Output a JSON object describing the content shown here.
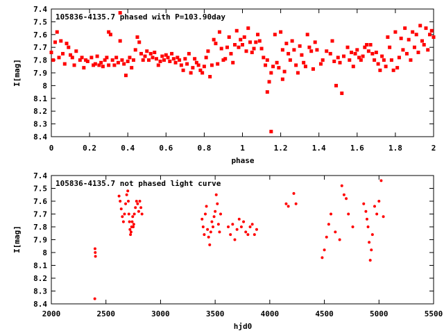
{
  "chart_data": [
    {
      "type": "scatter",
      "title": "105836-4135.7 phased with P=103.90day",
      "xlabel": "phase",
      "ylabel": "I[mag]",
      "xlim": [
        0,
        2
      ],
      "ylim": [
        7.4,
        8.4
      ],
      "y_inverted": true,
      "grid": false,
      "marker_color": "#ff0000",
      "x_ticks": [
        "0",
        "0.2",
        "0.4",
        "0.6",
        "0.8",
        "1",
        "1.2",
        "1.4",
        "1.6",
        "1.8",
        "2"
      ],
      "y_ticks": [
        "7.4",
        "7.5",
        "7.6",
        "7.7",
        "7.8",
        "7.9",
        "8",
        "8.1",
        "8.2",
        "8.3",
        "8.4"
      ],
      "points": [
        [
          0.0,
          7.74
        ],
        [
          0.01,
          7.8
        ],
        [
          0.02,
          7.66
        ],
        [
          0.03,
          7.58
        ],
        [
          0.04,
          7.78
        ],
        [
          0.05,
          7.65
        ],
        [
          0.06,
          7.75
        ],
        [
          0.07,
          7.83
        ],
        [
          0.08,
          7.67
        ],
        [
          0.09,
          7.7
        ],
        [
          0.1,
          7.76
        ],
        [
          0.11,
          7.78
        ],
        [
          0.12,
          7.84
        ],
        [
          0.13,
          7.73
        ],
        [
          0.15,
          7.8
        ],
        [
          0.16,
          7.78
        ],
        [
          0.17,
          7.86
        ],
        [
          0.18,
          7.8
        ],
        [
          0.19,
          7.81
        ],
        [
          0.21,
          7.78
        ],
        [
          0.22,
          7.84
        ],
        [
          0.23,
          7.83
        ],
        [
          0.24,
          7.77
        ],
        [
          0.25,
          7.84
        ],
        [
          0.26,
          7.82
        ],
        [
          0.27,
          7.85
        ],
        [
          0.28,
          7.8
        ],
        [
          0.29,
          7.78
        ],
        [
          0.3,
          7.84
        ],
        [
          0.3,
          7.58
        ],
        [
          0.31,
          7.6
        ],
        [
          0.32,
          7.8
        ],
        [
          0.33,
          7.84
        ],
        [
          0.34,
          7.78
        ],
        [
          0.35,
          7.82
        ],
        [
          0.36,
          7.65
        ],
        [
          0.36,
          7.43
        ],
        [
          0.37,
          7.8
        ],
        [
          0.38,
          7.83
        ],
        [
          0.39,
          7.92
        ],
        [
          0.4,
          7.81
        ],
        [
          0.41,
          7.78
        ],
        [
          0.42,
          7.86
        ],
        [
          0.43,
          7.8
        ],
        [
          0.44,
          7.72
        ],
        [
          0.45,
          7.62
        ],
        [
          0.46,
          7.66
        ],
        [
          0.47,
          7.75
        ],
        [
          0.48,
          7.8
        ],
        [
          0.49,
          7.77
        ],
        [
          0.5,
          7.73
        ],
        [
          0.51,
          7.8
        ],
        [
          0.52,
          7.75
        ],
        [
          0.53,
          7.78
        ],
        [
          0.54,
          7.74
        ],
        [
          0.55,
          7.79
        ],
        [
          0.56,
          7.84
        ],
        [
          0.57,
          7.81
        ],
        [
          0.58,
          7.77
        ],
        [
          0.59,
          7.8
        ],
        [
          0.6,
          7.76
        ],
        [
          0.61,
          7.78
        ],
        [
          0.62,
          7.81
        ],
        [
          0.63,
          7.75
        ],
        [
          0.64,
          7.79
        ],
        [
          0.65,
          7.82
        ],
        [
          0.66,
          7.78
        ],
        [
          0.67,
          7.8
        ],
        [
          0.68,
          7.84
        ],
        [
          0.69,
          7.88
        ],
        [
          0.7,
          7.79
        ],
        [
          0.71,
          7.83
        ],
        [
          0.72,
          7.75
        ],
        [
          0.73,
          7.9
        ],
        [
          0.74,
          7.86
        ],
        [
          0.75,
          7.79
        ],
        [
          0.76,
          7.82
        ],
        [
          0.77,
          7.84
        ],
        [
          0.78,
          7.88
        ],
        [
          0.79,
          7.9
        ],
        [
          0.8,
          7.85
        ],
        [
          0.81,
          7.78
        ],
        [
          0.82,
          7.73
        ],
        [
          0.83,
          7.93
        ],
        [
          0.84,
          7.84
        ],
        [
          0.85,
          7.64
        ],
        [
          0.86,
          7.67
        ],
        [
          0.87,
          7.83
        ],
        [
          0.88,
          7.58
        ],
        [
          0.89,
          7.71
        ],
        [
          0.9,
          7.8
        ],
        [
          0.91,
          7.79
        ],
        [
          0.92,
          7.7
        ],
        [
          0.93,
          7.62
        ],
        [
          0.94,
          7.75
        ],
        [
          0.95,
          7.82
        ],
        [
          0.96,
          7.68
        ],
        [
          0.97,
          7.57
        ],
        [
          0.98,
          7.7
        ],
        [
          0.99,
          7.64
        ],
        [
          1.0,
          7.68
        ],
        [
          1.01,
          7.62
        ],
        [
          1.02,
          7.73
        ],
        [
          1.03,
          7.55
        ],
        [
          1.04,
          7.66
        ],
        [
          1.05,
          7.74
        ],
        [
          1.06,
          7.71
        ],
        [
          1.07,
          7.66
        ],
        [
          1.08,
          7.6
        ],
        [
          1.09,
          7.65
        ],
        [
          1.1,
          7.71
        ],
        [
          1.11,
          7.78
        ],
        [
          1.12,
          7.84
        ],
        [
          1.13,
          7.8
        ],
        [
          1.13,
          8.05
        ],
        [
          1.14,
          7.97
        ],
        [
          1.15,
          8.36
        ],
        [
          1.15,
          7.9
        ],
        [
          1.16,
          7.85
        ],
        [
          1.17,
          7.6
        ],
        [
          1.18,
          7.82
        ],
        [
          1.19,
          7.86
        ],
        [
          1.2,
          7.58
        ],
        [
          1.21,
          7.72
        ],
        [
          1.21,
          7.95
        ],
        [
          1.22,
          7.89
        ],
        [
          1.23,
          7.67
        ],
        [
          1.24,
          7.75
        ],
        [
          1.25,
          7.8
        ],
        [
          1.26,
          7.65
        ],
        [
          1.27,
          7.72
        ],
        [
          1.28,
          7.84
        ],
        [
          1.29,
          7.9
        ],
        [
          1.3,
          7.69
        ],
        [
          1.31,
          7.76
        ],
        [
          1.32,
          7.82
        ],
        [
          1.33,
          7.85
        ],
        [
          1.34,
          7.6
        ],
        [
          1.35,
          7.7
        ],
        [
          1.36,
          7.73
        ],
        [
          1.37,
          7.87
        ],
        [
          1.38,
          7.66
        ],
        [
          1.39,
          7.72
        ],
        [
          1.41,
          7.83
        ],
        [
          1.42,
          7.8
        ],
        [
          1.44,
          7.73
        ],
        [
          1.46,
          7.75
        ],
        [
          1.47,
          7.65
        ],
        [
          1.48,
          7.81
        ],
        [
          1.49,
          8.0
        ],
        [
          1.5,
          7.78
        ],
        [
          1.51,
          7.82
        ],
        [
          1.52,
          8.06
        ],
        [
          1.53,
          7.77
        ],
        [
          1.55,
          7.7
        ],
        [
          1.56,
          7.8
        ],
        [
          1.57,
          7.74
        ],
        [
          1.58,
          7.85
        ],
        [
          1.59,
          7.75
        ],
        [
          1.6,
          7.72
        ],
        [
          1.61,
          7.78
        ],
        [
          1.62,
          7.8
        ],
        [
          1.63,
          7.77
        ],
        [
          1.64,
          7.7
        ],
        [
          1.65,
          7.68
        ],
        [
          1.66,
          7.73
        ],
        [
          1.67,
          7.68
        ],
        [
          1.68,
          7.75
        ],
        [
          1.69,
          7.8
        ],
        [
          1.7,
          7.74
        ],
        [
          1.71,
          7.83
        ],
        [
          1.72,
          7.88
        ],
        [
          1.73,
          7.77
        ],
        [
          1.74,
          7.8
        ],
        [
          1.75,
          7.85
        ],
        [
          1.76,
          7.62
        ],
        [
          1.77,
          7.7
        ],
        [
          1.78,
          7.8
        ],
        [
          1.79,
          7.88
        ],
        [
          1.8,
          7.58
        ],
        [
          1.81,
          7.86
        ],
        [
          1.82,
          7.78
        ],
        [
          1.83,
          7.63
        ],
        [
          1.84,
          7.72
        ],
        [
          1.85,
          7.55
        ],
        [
          1.86,
          7.75
        ],
        [
          1.87,
          7.64
        ],
        [
          1.88,
          7.8
        ],
        [
          1.89,
          7.58
        ],
        [
          1.9,
          7.7
        ],
        [
          1.91,
          7.6
        ],
        [
          1.92,
          7.74
        ],
        [
          1.93,
          7.53
        ],
        [
          1.94,
          7.65
        ],
        [
          1.95,
          7.68
        ],
        [
          1.96,
          7.55
        ],
        [
          1.97,
          7.72
        ],
        [
          1.98,
          7.6
        ],
        [
          1.99,
          7.57
        ],
        [
          2.0,
          7.62
        ]
      ]
    },
    {
      "type": "scatter",
      "title": "105836-4135.7 not phased light curve",
      "xlabel": "hjd0",
      "ylabel": "I[mag]",
      "xlim": [
        2000,
        5500
      ],
      "ylim": [
        7.4,
        8.4
      ],
      "y_inverted": true,
      "grid": false,
      "marker_color": "#ff0000",
      "x_ticks": [
        "2000",
        "2500",
        "3000",
        "3500",
        "4000",
        "4500",
        "5000",
        "5500"
      ],
      "y_ticks": [
        "7.4",
        "7.5",
        "7.6",
        "7.7",
        "7.8",
        "7.9",
        "8",
        "8.1",
        "8.2",
        "8.3",
        "8.4"
      ],
      "points": [
        [
          2400,
          7.97
        ],
        [
          2402,
          8.0
        ],
        [
          2404,
          8.03
        ],
        [
          2398,
          8.36
        ],
        [
          2620,
          7.56
        ],
        [
          2630,
          7.6
        ],
        [
          2640,
          7.66
        ],
        [
          2650,
          7.72
        ],
        [
          2660,
          7.76
        ],
        [
          2670,
          7.7
        ],
        [
          2680,
          7.62
        ],
        [
          2690,
          7.55
        ],
        [
          2700,
          7.52
        ],
        [
          2705,
          7.6
        ],
        [
          2710,
          7.7
        ],
        [
          2715,
          7.76
        ],
        [
          2720,
          7.82
        ],
        [
          2725,
          7.86
        ],
        [
          2730,
          7.84
        ],
        [
          2735,
          7.8
        ],
        [
          2740,
          7.76
        ],
        [
          2745,
          7.72
        ],
        [
          2750,
          7.8
        ],
        [
          2755,
          7.78
        ],
        [
          2760,
          7.7
        ],
        [
          2770,
          7.65
        ],
        [
          2780,
          7.6
        ],
        [
          2790,
          7.62
        ],
        [
          2800,
          7.68
        ],
        [
          2810,
          7.6
        ],
        [
          2820,
          7.65
        ],
        [
          2830,
          7.7
        ],
        [
          3380,
          7.74
        ],
        [
          3390,
          7.8
        ],
        [
          3400,
          7.86
        ],
        [
          3410,
          7.7
        ],
        [
          3420,
          7.64
        ],
        [
          3430,
          7.82
        ],
        [
          3440,
          7.88
        ],
        [
          3450,
          7.94
        ],
        [
          3460,
          7.84
        ],
        [
          3470,
          7.76
        ],
        [
          3480,
          7.8
        ],
        [
          3490,
          7.72
        ],
        [
          3500,
          7.68
        ],
        [
          3510,
          7.55
        ],
        [
          3520,
          7.62
        ],
        [
          3530,
          7.78
        ],
        [
          3540,
          7.84
        ],
        [
          3550,
          7.7
        ],
        [
          3620,
          7.8
        ],
        [
          3640,
          7.86
        ],
        [
          3660,
          7.78
        ],
        [
          3680,
          7.9
        ],
        [
          3700,
          7.82
        ],
        [
          3720,
          7.74
        ],
        [
          3740,
          7.8
        ],
        [
          3760,
          7.76
        ],
        [
          3780,
          7.84
        ],
        [
          3800,
          7.86
        ],
        [
          3820,
          7.8
        ],
        [
          3840,
          7.78
        ],
        [
          3860,
          7.86
        ],
        [
          3880,
          7.82
        ],
        [
          4150,
          7.62
        ],
        [
          4170,
          7.64
        ],
        [
          4220,
          7.54
        ],
        [
          4240,
          7.62
        ],
        [
          4480,
          8.04
        ],
        [
          4500,
          7.98
        ],
        [
          4520,
          7.88
        ],
        [
          4540,
          7.78
        ],
        [
          4560,
          7.7
        ],
        [
          4600,
          7.84
        ],
        [
          4640,
          7.9
        ],
        [
          4660,
          7.48
        ],
        [
          4680,
          7.55
        ],
        [
          4700,
          7.58
        ],
        [
          4720,
          7.7
        ],
        [
          4760,
          7.8
        ],
        [
          4860,
          7.62
        ],
        [
          4880,
          7.68
        ],
        [
          4890,
          7.74
        ],
        [
          4900,
          7.8
        ],
        [
          4910,
          7.92
        ],
        [
          4920,
          8.06
        ],
        [
          4930,
          7.98
        ],
        [
          4940,
          7.86
        ],
        [
          4960,
          7.64
        ],
        [
          4980,
          7.7
        ],
        [
          5000,
          7.6
        ],
        [
          5020,
          7.44
        ],
        [
          5040,
          7.72
        ]
      ]
    }
  ]
}
